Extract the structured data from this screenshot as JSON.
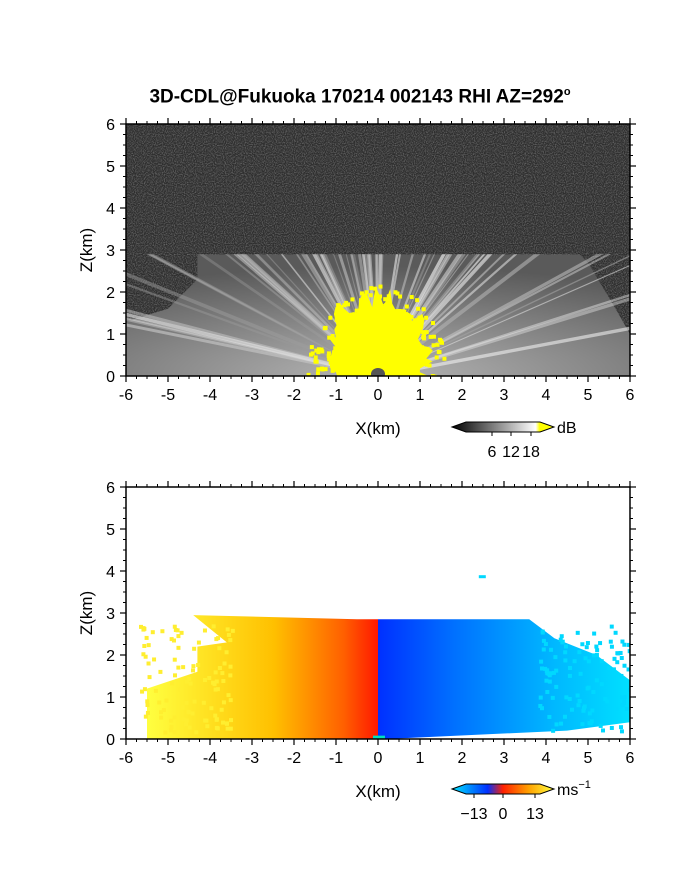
{
  "title": {
    "main": "3D-CDL@Fukuoka 170214 002143 RHI AZ=292",
    "sup": "o"
  },
  "chart_data": [
    {
      "type": "heatmap",
      "panel": "top",
      "quantity_unit": "dB",
      "xlabel": "X(km)",
      "ylabel": "Z(km)",
      "xlim": [
        -6,
        6
      ],
      "ylim": [
        0,
        6
      ],
      "xticks": [
        "-6",
        "-5",
        "-4",
        "-3",
        "-2",
        "-1",
        "0",
        "1",
        "2",
        "3",
        "4",
        "5",
        "6"
      ],
      "yticks": [
        "0",
        "1",
        "2",
        "3",
        "4",
        "5",
        "6"
      ],
      "colorbar": {
        "label": "dB",
        "ticks": [
          "6",
          "12",
          "18"
        ],
        "colors": [
          "#000000",
          "#ffffff",
          "#ffff00"
        ]
      },
      "background_color": "#303030",
      "echo_top_km": 2.9,
      "saturated_core": {
        "half_width_km": 1.5,
        "top_km": 1.9,
        "color": "#ffff00"
      },
      "notes": "grayscale fan of radial streaks centered at X=0, saturated yellow near origin"
    },
    {
      "type": "heatmap",
      "panel": "bottom",
      "quantity_unit": "ms",
      "quantity_unit_sup": "−1",
      "xlabel": "X(km)",
      "ylabel": "Z(km)",
      "xlim": [
        -6,
        6
      ],
      "ylim": [
        0,
        6
      ],
      "xticks": [
        "-6",
        "-5",
        "-4",
        "-3",
        "-2",
        "-1",
        "0",
        "1",
        "2",
        "3",
        "4",
        "5",
        "6"
      ],
      "yticks": [
        "0",
        "1",
        "2",
        "3",
        "4",
        "5",
        "6"
      ],
      "colorbar": {
        "label": "ms",
        "label_sup": "−1",
        "ticks": [
          "−13",
          "0",
          "13"
        ],
        "colors": [
          "#00e5ff",
          "#0030ff",
          "#ff2000",
          "#ffff40"
        ]
      },
      "left_side": "positive (yellow-orange-red toward X=0)",
      "right_side": "negative (blue to cyan away from X=0)",
      "echo_top_km": 2.85
    }
  ]
}
